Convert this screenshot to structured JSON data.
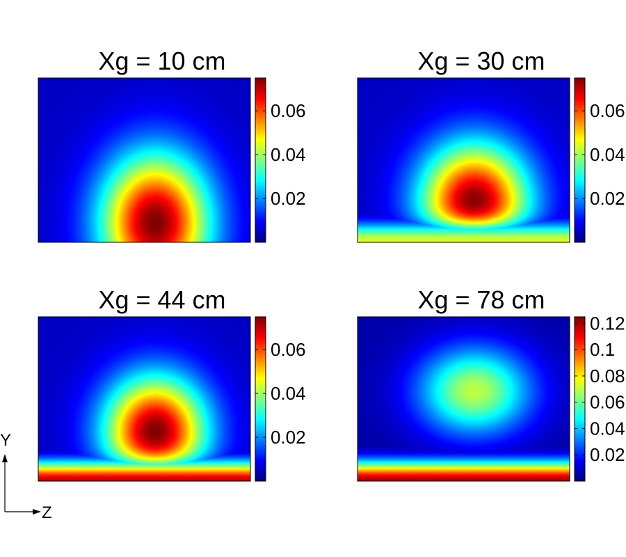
{
  "chart_data": [
    {
      "type": "heatmap",
      "title": "Xg = 10 cm",
      "colorbar": {
        "range": [
          0,
          0.075
        ],
        "ticks": [
          0.02,
          0.04,
          0.06
        ],
        "tick_labels": [
          "0.02",
          "0.04",
          "0.06"
        ]
      },
      "field": {
        "peak_center": [
          0.55,
          0.88
        ],
        "peak_value": 0.075,
        "spread": [
          0.32,
          0.52
        ],
        "floor": 0.005,
        "bottom_band": 0.0
      }
    },
    {
      "type": "heatmap",
      "title": "Xg = 30 cm",
      "colorbar": {
        "range": [
          0,
          0.075
        ],
        "ticks": [
          0.02,
          0.04,
          0.06
        ],
        "tick_labels": [
          "0.02",
          "0.04",
          "0.06"
        ]
      },
      "field": {
        "peak_center": [
          0.55,
          0.76
        ],
        "peak_value": 0.075,
        "spread": [
          0.32,
          0.45
        ],
        "floor": 0.005,
        "bottom_band": 0.045
      }
    },
    {
      "type": "heatmap",
      "title": "Xg = 44 cm",
      "colorbar": {
        "range": [
          0,
          0.075
        ],
        "ticks": [
          0.02,
          0.04,
          0.06
        ],
        "tick_labels": [
          "0.02",
          "0.04",
          "0.06"
        ]
      },
      "field": {
        "peak_center": [
          0.55,
          0.7
        ],
        "peak_value": 0.075,
        "spread": [
          0.3,
          0.42
        ],
        "floor": 0.005,
        "bottom_band": 0.07
      }
    },
    {
      "type": "heatmap",
      "title": "Xg = 78 cm",
      "colorbar": {
        "range": [
          0,
          0.125
        ],
        "ticks": [
          0.02,
          0.04,
          0.06,
          0.08,
          0.1,
          0.12
        ],
        "tick_labels": [
          "0.02",
          "0.04",
          "0.06",
          "0.08",
          "0.1",
          "0.12"
        ]
      },
      "field": {
        "peak_center": [
          0.55,
          0.45
        ],
        "peak_value": 0.07,
        "spread": [
          0.33,
          0.33
        ],
        "floor": 0.005,
        "bottom_band": 0.12
      }
    }
  ],
  "axes_indicator": {
    "vertical": "Y",
    "horizontal": "Z"
  }
}
